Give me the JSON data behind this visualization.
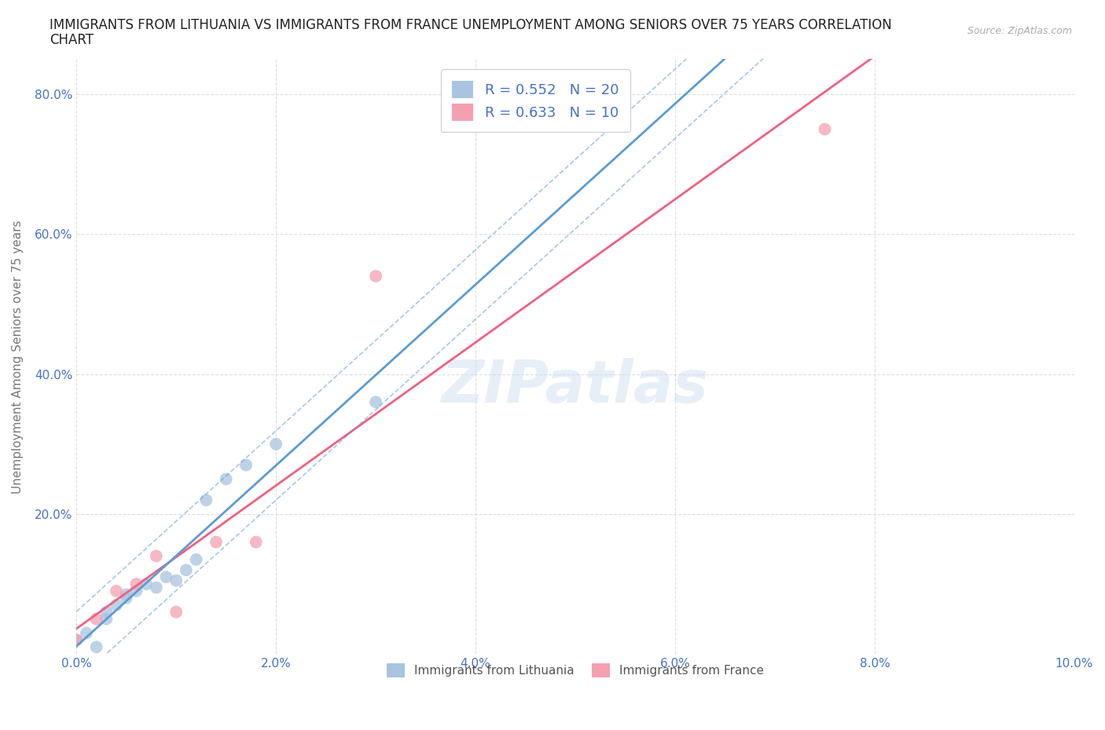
{
  "title": "IMMIGRANTS FROM LITHUANIA VS IMMIGRANTS FROM FRANCE UNEMPLOYMENT AMONG SENIORS OVER 75 YEARS CORRELATION\nCHART",
  "source_text": "Source: ZipAtlas.com",
  "ylabel": "Unemployment Among Seniors over 75 years",
  "xlabel": "",
  "watermark": "ZIPatlas",
  "lithuania_x": [
    0.0,
    0.001,
    0.002,
    0.003,
    0.003,
    0.004,
    0.005,
    0.005,
    0.006,
    0.007,
    0.008,
    0.009,
    0.01,
    0.011,
    0.012,
    0.013,
    0.015,
    0.017,
    0.02,
    0.03
  ],
  "lithuania_y": [
    0.02,
    0.03,
    0.01,
    0.06,
    0.05,
    0.07,
    0.08,
    0.085,
    0.09,
    0.1,
    0.095,
    0.11,
    0.105,
    0.12,
    0.135,
    0.22,
    0.25,
    0.27,
    0.3,
    0.36
  ],
  "france_x": [
    0.0,
    0.002,
    0.004,
    0.006,
    0.008,
    0.01,
    0.014,
    0.018,
    0.03,
    0.075
  ],
  "france_y": [
    0.02,
    0.05,
    0.09,
    0.1,
    0.14,
    0.06,
    0.16,
    0.16,
    0.54,
    0.75
  ],
  "R_lithuania": 0.552,
  "N_lithuania": 20,
  "R_france": 0.633,
  "N_france": 10,
  "color_lithuania": "#a8c4e0",
  "color_france": "#f4a0b0",
  "color_text_blue": "#4472c4",
  "color_regression_lithuania": "#5b9bd5",
  "color_regression_france": "#f06080",
  "color_grid": "#c8c8c8",
  "color_axis_labels": "#4472c4",
  "background_color": "#ffffff",
  "xlim": [
    0.0,
    0.1
  ],
  "ylim": [
    0.0,
    0.85
  ],
  "xticks": [
    0.0,
    0.02,
    0.04,
    0.06,
    0.08,
    0.1
  ],
  "yticks": [
    0.0,
    0.2,
    0.4,
    0.6,
    0.8
  ],
  "xtick_labels": [
    "0.0%",
    "2.0%",
    "4.0%",
    "6.0%",
    "8.0%",
    "10.0%"
  ],
  "ytick_labels": [
    "",
    "20.0%",
    "40.0%",
    "60.0%",
    "80.0%"
  ]
}
